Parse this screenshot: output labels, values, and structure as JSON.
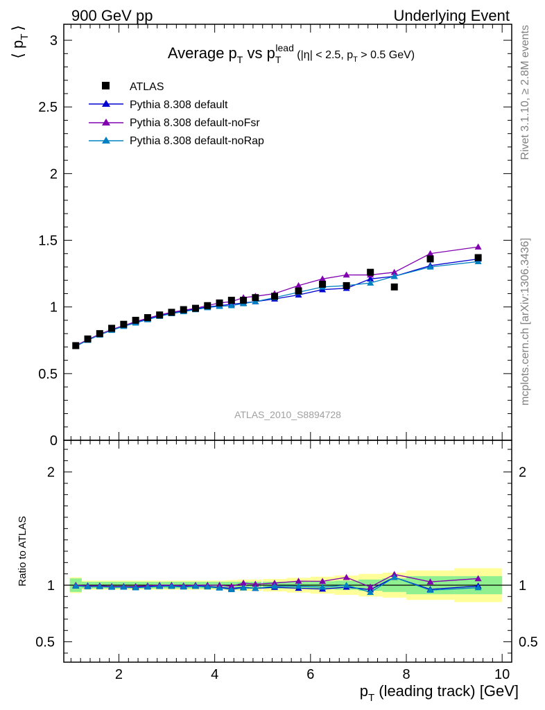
{
  "header": {
    "left": "900 GeV pp",
    "right": "Underlying Event"
  },
  "side_labels": {
    "rivet": "Rivet 3.1.10, ≥ 2.8M events",
    "mcplots": "mcplots.cern.ch [arXiv:1306.3436]"
  },
  "chart_data": {
    "type": "line",
    "title": {
      "prefix": "Average p",
      "p_sub": "T",
      "vs": " vs p",
      "lead_sub": "T",
      "lead_sup": "lead",
      "cuts_a": " (|η| < 2.5, p",
      "cuts_sub": "T",
      "cuts_b": " > 0.5 GeV)"
    },
    "ylabel": {
      "open": "⟨ p",
      "sub": "T",
      "close": "⟩"
    },
    "xlabel": {
      "p": "p",
      "sub": "T",
      "rest": " (leading track) [GeV]"
    },
    "ratio_ylabel": "Ratio to ATLAS",
    "watermark": "ATLAS_2010_S8894728",
    "xlim": [
      0.85,
      10.2
    ],
    "ylim": [
      0,
      3.12
    ],
    "ratio_ylim": [
      0.32,
      2.28
    ],
    "xticks": [
      2,
      4,
      6,
      8,
      10
    ],
    "yticks": [
      0,
      0.5,
      1,
      1.5,
      2,
      2.5,
      3
    ],
    "ytick_labels": [
      "0",
      "0.5",
      "1",
      "1.5",
      "2",
      "2.5",
      "3"
    ],
    "ratio_yticks": [
      0.5,
      1,
      2
    ],
    "ratio_ytick_labels": [
      "0.5",
      "1",
      "2"
    ],
    "x": [
      1.1,
      1.35,
      1.6,
      1.85,
      2.1,
      2.35,
      2.6,
      2.85,
      3.1,
      3.35,
      3.6,
      3.85,
      4.1,
      4.35,
      4.6,
      4.85,
      5.25,
      5.75,
      6.25,
      6.75,
      7.25,
      7.75,
      8.5,
      9.5
    ],
    "x_err": [
      0.125,
      0.125,
      0.125,
      0.125,
      0.125,
      0.125,
      0.125,
      0.125,
      0.125,
      0.125,
      0.125,
      0.125,
      0.125,
      0.125,
      0.125,
      0.125,
      0.25,
      0.25,
      0.25,
      0.25,
      0.25,
      0.25,
      0.5,
      0.5
    ],
    "data": {
      "name": "ATLAS",
      "color": "#000000",
      "values": [
        0.71,
        0.76,
        0.8,
        0.84,
        0.87,
        0.9,
        0.92,
        0.94,
        0.96,
        0.98,
        0.99,
        1.01,
        1.03,
        1.05,
        1.05,
        1.07,
        1.08,
        1.12,
        1.17,
        1.16,
        1.26,
        1.15,
        1.36,
        1.37
      ],
      "band_inner": [
        0.06,
        0.03,
        0.03,
        0.03,
        0.03,
        0.03,
        0.03,
        0.03,
        0.03,
        0.03,
        0.03,
        0.03,
        0.03,
        0.03,
        0.03,
        0.03,
        0.03,
        0.03,
        0.035,
        0.04,
        0.05,
        0.06,
        0.08,
        0.08
      ],
      "band_outer": [
        0.07,
        0.04,
        0.04,
        0.04,
        0.04,
        0.04,
        0.04,
        0.04,
        0.04,
        0.04,
        0.04,
        0.04,
        0.04,
        0.045,
        0.05,
        0.05,
        0.055,
        0.065,
        0.075,
        0.085,
        0.1,
        0.11,
        0.13,
        0.15
      ]
    },
    "series": [
      {
        "name": "Pythia 8.308 default",
        "color": "#0000d0",
        "values": [
          0.705,
          0.755,
          0.795,
          0.83,
          0.86,
          0.885,
          0.91,
          0.935,
          0.955,
          0.97,
          0.985,
          1.0,
          1.01,
          1.02,
          1.03,
          1.04,
          1.06,
          1.09,
          1.13,
          1.14,
          1.21,
          1.23,
          1.31,
          1.36
        ]
      },
      {
        "name": "Pythia 8.308 default-noFsr",
        "color": "#8000b0",
        "values": [
          0.71,
          0.755,
          0.795,
          0.83,
          0.86,
          0.89,
          0.915,
          0.94,
          0.96,
          0.975,
          0.99,
          1.01,
          1.03,
          1.04,
          1.07,
          1.08,
          1.1,
          1.16,
          1.21,
          1.24,
          1.24,
          1.26,
          1.4,
          1.45
        ]
      },
      {
        "name": "Pythia 8.308 default-noRap",
        "color": "#0080c0",
        "values": [
          0.705,
          0.75,
          0.79,
          0.825,
          0.855,
          0.88,
          0.905,
          0.93,
          0.95,
          0.965,
          0.98,
          0.995,
          1.005,
          1.01,
          1.025,
          1.04,
          1.07,
          1.11,
          1.15,
          1.16,
          1.18,
          1.23,
          1.3,
          1.34
        ]
      }
    ],
    "legend_position": "top-left"
  }
}
